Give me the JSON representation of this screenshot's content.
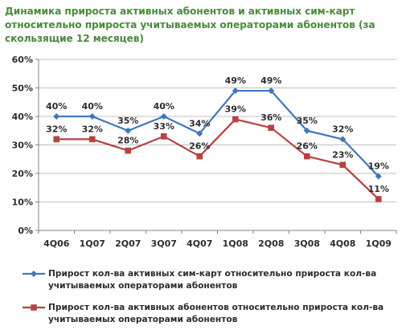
{
  "title": "Динамика прироста активных абонентов и активных сим-карт относительно прироста учитываемых операторами абонентов (за скользящие 12 месяцев)",
  "colors": {
    "series1": "#3f78b9",
    "series2": "#b84040",
    "grid": "#bfbfbf",
    "axis": "#808080",
    "title": "#4a8a3c"
  },
  "chart_data": {
    "type": "line",
    "title": "Динамика прироста активных абонентов и активных сим-карт относительно прироста учитываемых операторами абонентов (за скользящие 12 месяцев)",
    "xlabel": "",
    "ylabel": "",
    "categories": [
      "4Q06",
      "1Q07",
      "2Q07",
      "3Q07",
      "4Q07",
      "1Q08",
      "2Q08",
      "3Q08",
      "4Q08",
      "1Q09"
    ],
    "ylim": [
      0,
      60
    ],
    "yticks": [
      "0%",
      "10%",
      "20%",
      "30%",
      "40%",
      "50%",
      "60%"
    ],
    "grid": "horizontal",
    "legend_position": "bottom",
    "series": [
      {
        "name": "Прирост кол-ва активных сим-карт относительно прироста кол-ва учитываемых операторами абонентов",
        "values": [
          40,
          40,
          35,
          40,
          34,
          49,
          49,
          35,
          32,
          19
        ],
        "labels": [
          "40%",
          "40%",
          "35%",
          "40%",
          "34%",
          "49%",
          "49%",
          "35%",
          "32%",
          "19%"
        ],
        "marker": "diamond"
      },
      {
        "name": "Прирост кол-ва активных абонентов относительно прироста кол-ва учитываемых операторами абонентов",
        "values": [
          32,
          32,
          28,
          33,
          26,
          39,
          36,
          26,
          23,
          11
        ],
        "labels": [
          "32%",
          "32%",
          "28%",
          "33%",
          "26%",
          "39%",
          "36%",
          "26%",
          "23%",
          "11%"
        ],
        "marker": "square"
      }
    ]
  }
}
